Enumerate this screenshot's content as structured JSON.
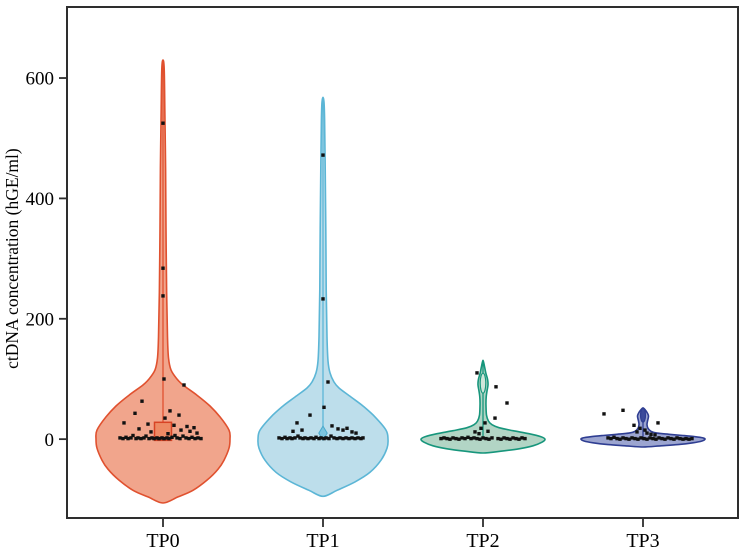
{
  "figure": {
    "ylabel": "ctDNA concentration (hGE/ml)"
  },
  "chart_data": {
    "type": "violin",
    "title": "",
    "xlabel": "",
    "ylabel": "ctDNA concentration (hGE/ml)",
    "categories": [
      "TP0",
      "TP1",
      "TP2",
      "TP3"
    ],
    "yticks": [
      0,
      200,
      400,
      600
    ],
    "ylim": [
      -131,
      718
    ],
    "grid": false,
    "legend": false,
    "axis_color": "#2e2e2e",
    "point_color": "#111111",
    "point_size": 3.4,
    "groups": [
      {
        "name": "TP0",
        "fill": "#f0a086",
        "stroke": "#e0512f",
        "max_value": 630,
        "min_value": -106,
        "median_box": {
          "lo": -2,
          "hi": 28,
          "halfwidth": 8.5,
          "fill": "#ee8a64",
          "stroke": "#d84325"
        },
        "center_line": {
          "from": 28,
          "to": 630
        },
        "marker": null,
        "profile": [
          [
            -106,
            0
          ],
          [
            -96,
            15
          ],
          [
            -85,
            30
          ],
          [
            -68,
            44
          ],
          [
            -50,
            55
          ],
          [
            -35,
            61
          ],
          [
            -15,
            66
          ],
          [
            0,
            67
          ],
          [
            15,
            66
          ],
          [
            37,
            57
          ],
          [
            55,
            47
          ],
          [
            73,
            34
          ],
          [
            90,
            20
          ],
          [
            100,
            14
          ],
          [
            115,
            8
          ],
          [
            135,
            5.5
          ],
          [
            170,
            4.5
          ],
          [
            250,
            3.6
          ],
          [
            350,
            3.0
          ],
          [
            450,
            2.6
          ],
          [
            550,
            1.8
          ],
          [
            615,
            1.2
          ],
          [
            630,
            0
          ]
        ],
        "points": [
          [
            0,
            525
          ],
          [
            0,
            284
          ],
          [
            0,
            238
          ],
          [
            1,
            100
          ],
          [
            21,
            90
          ],
          [
            -21,
            63
          ],
          [
            7,
            47
          ],
          [
            -28,
            43
          ],
          [
            16,
            40
          ],
          [
            2,
            35
          ],
          [
            -39,
            27
          ],
          [
            -15,
            25
          ],
          [
            11,
            23
          ],
          [
            24,
            21
          ],
          [
            31,
            19
          ],
          [
            -24,
            17
          ],
          [
            18,
            15
          ],
          [
            27,
            13
          ],
          [
            -12,
            12
          ],
          [
            34,
            10
          ],
          [
            5,
            9
          ],
          [
            -43,
            2
          ],
          [
            -40,
            1
          ],
          [
            -37,
            3
          ],
          [
            -35,
            1
          ],
          [
            -32,
            2
          ],
          [
            -30,
            6
          ],
          [
            -27,
            1
          ],
          [
            -25,
            2
          ],
          [
            -22,
            1
          ],
          [
            -19,
            2
          ],
          [
            -17,
            5
          ],
          [
            -14,
            1
          ],
          [
            -11,
            2
          ],
          [
            -9,
            1
          ],
          [
            -6,
            2
          ],
          [
            -4,
            1
          ],
          [
            -1,
            2
          ],
          [
            1,
            1
          ],
          [
            4,
            2
          ],
          [
            6,
            1
          ],
          [
            9,
            3
          ],
          [
            12,
            6
          ],
          [
            14,
            2
          ],
          [
            17,
            1
          ],
          [
            20,
            5
          ],
          [
            23,
            2
          ],
          [
            26,
            1
          ],
          [
            29,
            3
          ],
          [
            32,
            1
          ],
          [
            35,
            2
          ],
          [
            38,
            1
          ]
        ]
      },
      {
        "name": "TP1",
        "fill": "#b9dcea",
        "stroke": "#5cb6d6",
        "max_value": 568,
        "min_value": -95,
        "median_box": null,
        "center_line": {
          "from": 10,
          "to": 568
        },
        "marker": {
          "type": "diamond",
          "v": 10,
          "size": 7,
          "fill": "#7cc4de",
          "stroke": "#4aa9cc"
        },
        "profile": [
          [
            -95,
            0
          ],
          [
            -85,
            14
          ],
          [
            -71,
            32
          ],
          [
            -55,
            47
          ],
          [
            -35,
            58
          ],
          [
            -15,
            64
          ],
          [
            0,
            65
          ],
          [
            15,
            63
          ],
          [
            37,
            52
          ],
          [
            55,
            40
          ],
          [
            70,
            28
          ],
          [
            85,
            16
          ],
          [
            95,
            11
          ],
          [
            110,
            7
          ],
          [
            130,
            5
          ],
          [
            170,
            4
          ],
          [
            250,
            3.2
          ],
          [
            350,
            2.8
          ],
          [
            450,
            2.2
          ],
          [
            530,
            1.6
          ],
          [
            560,
            1
          ],
          [
            568,
            0
          ]
        ],
        "points": [
          [
            0,
            472
          ],
          [
            0,
            233
          ],
          [
            5,
            95
          ],
          [
            1,
            53
          ],
          [
            -13,
            40
          ],
          [
            -26,
            27
          ],
          [
            9,
            22
          ],
          [
            24,
            18
          ],
          [
            15,
            17
          ],
          [
            -21,
            15
          ],
          [
            20,
            15
          ],
          [
            -30,
            13
          ],
          [
            29,
            12
          ],
          [
            33,
            10
          ],
          [
            -44,
            2
          ],
          [
            -41,
            1
          ],
          [
            -38,
            3
          ],
          [
            -36,
            1
          ],
          [
            -33,
            2
          ],
          [
            -31,
            1
          ],
          [
            -28,
            2
          ],
          [
            -25,
            5
          ],
          [
            -23,
            2
          ],
          [
            -20,
            1
          ],
          [
            -18,
            2
          ],
          [
            -15,
            1
          ],
          [
            -12,
            2
          ],
          [
            -9,
            1
          ],
          [
            -7,
            3
          ],
          [
            -4,
            1
          ],
          [
            -2,
            2
          ],
          [
            1,
            1
          ],
          [
            3,
            2
          ],
          [
            6,
            1
          ],
          [
            8,
            5
          ],
          [
            11,
            2
          ],
          [
            14,
            1
          ],
          [
            17,
            2
          ],
          [
            20,
            1
          ],
          [
            23,
            2
          ],
          [
            26,
            1
          ],
          [
            29,
            2
          ],
          [
            32,
            1
          ],
          [
            35,
            2
          ],
          [
            38,
            1
          ],
          [
            40,
            2
          ]
        ]
      },
      {
        "name": "TP2",
        "fill": "#aed3c2",
        "stroke": "#17967c",
        "max_value": 131,
        "min_value": -23,
        "median_box": null,
        "center_line": {
          "from": 0,
          "to": 131
        },
        "marker": {
          "type": "lens",
          "v": 93,
          "rx": 2.8,
          "ry": 10,
          "fill": "#cfe6da",
          "stroke": "#17967c"
        },
        "profile": [
          [
            -23,
            0
          ],
          [
            -20,
            18
          ],
          [
            -16,
            36
          ],
          [
            -11,
            50
          ],
          [
            -5,
            59
          ],
          [
            0,
            62
          ],
          [
            4,
            58
          ],
          [
            9,
            46
          ],
          [
            14,
            30
          ],
          [
            19,
            16
          ],
          [
            24,
            9
          ],
          [
            30,
            5.5
          ],
          [
            40,
            3.5
          ],
          [
            55,
            3
          ],
          [
            70,
            3.2
          ],
          [
            80,
            4
          ],
          [
            90,
            5
          ],
          [
            100,
            4.5
          ],
          [
            110,
            2.8
          ],
          [
            120,
            1.6
          ],
          [
            131,
            0
          ]
        ],
        "points": [
          [
            -6,
            110
          ],
          [
            13,
            87
          ],
          [
            24,
            60
          ],
          [
            12,
            35
          ],
          [
            2,
            27
          ],
          [
            -2,
            18
          ],
          [
            5,
            13
          ],
          [
            -8,
            12
          ],
          [
            -4,
            9
          ],
          [
            -42,
            1
          ],
          [
            -39,
            2
          ],
          [
            -36,
            1
          ],
          [
            -33,
            0
          ],
          [
            -30,
            2
          ],
          [
            -27,
            1
          ],
          [
            -24,
            0
          ],
          [
            -21,
            2
          ],
          [
            -18,
            1
          ],
          [
            -15,
            3
          ],
          [
            -12,
            1
          ],
          [
            -9,
            2
          ],
          [
            -6,
            1
          ],
          [
            -3,
            0
          ],
          [
            0,
            2
          ],
          [
            3,
            1
          ],
          [
            6,
            0
          ],
          [
            9,
            2
          ],
          [
            15,
            1
          ],
          [
            18,
            0
          ],
          [
            21,
            2
          ],
          [
            24,
            1
          ],
          [
            27,
            0
          ],
          [
            30,
            2
          ],
          [
            33,
            1
          ],
          [
            36,
            0
          ],
          [
            39,
            2
          ],
          [
            42,
            1
          ]
        ]
      },
      {
        "name": "TP3",
        "fill": "#97a0cd",
        "stroke": "#2f3e92",
        "max_value": 52,
        "min_value": -13,
        "median_box": null,
        "center_line": {
          "from": 0,
          "to": 52
        },
        "marker": {
          "type": "lens",
          "v": 40,
          "rx": 2.5,
          "ry": 7,
          "fill": "#3b4a9b",
          "stroke": "#2f3e92"
        },
        "profile": [
          [
            -13,
            0
          ],
          [
            -11,
            18
          ],
          [
            -9,
            35
          ],
          [
            -6,
            50
          ],
          [
            -3,
            59
          ],
          [
            0,
            62
          ],
          [
            2,
            60
          ],
          [
            4,
            52
          ],
          [
            6,
            40
          ],
          [
            8,
            26
          ],
          [
            10,
            14
          ],
          [
            13,
            8
          ],
          [
            18,
            5
          ],
          [
            24,
            4
          ],
          [
            30,
            4.5
          ],
          [
            38,
            5.5
          ],
          [
            43,
            4.5
          ],
          [
            48,
            2.5
          ],
          [
            52,
            0
          ]
        ],
        "points": [
          [
            -39,
            42
          ],
          [
            -20,
            48
          ],
          [
            15,
            27
          ],
          [
            -9,
            23
          ],
          [
            -3,
            18
          ],
          [
            2,
            15
          ],
          [
            -6,
            12
          ],
          [
            4,
            10
          ],
          [
            8,
            8
          ],
          [
            12,
            7
          ],
          [
            -35,
            2
          ],
          [
            -32,
            1
          ],
          [
            -29,
            3
          ],
          [
            -26,
            1
          ],
          [
            -23,
            0
          ],
          [
            -20,
            2
          ],
          [
            -17,
            1
          ],
          [
            -14,
            0
          ],
          [
            -11,
            2
          ],
          [
            -8,
            1
          ],
          [
            -5,
            0
          ],
          [
            -2,
            2
          ],
          [
            1,
            1
          ],
          [
            4,
            0
          ],
          [
            7,
            2
          ],
          [
            10,
            1
          ],
          [
            13,
            0
          ],
          [
            16,
            2
          ],
          [
            19,
            1
          ],
          [
            22,
            0
          ],
          [
            25,
            2
          ],
          [
            28,
            1
          ],
          [
            31,
            0
          ],
          [
            34,
            2
          ],
          [
            37,
            1
          ],
          [
            40,
            0
          ],
          [
            43,
            1
          ],
          [
            46,
            0
          ],
          [
            49,
            1
          ]
        ]
      }
    ]
  }
}
